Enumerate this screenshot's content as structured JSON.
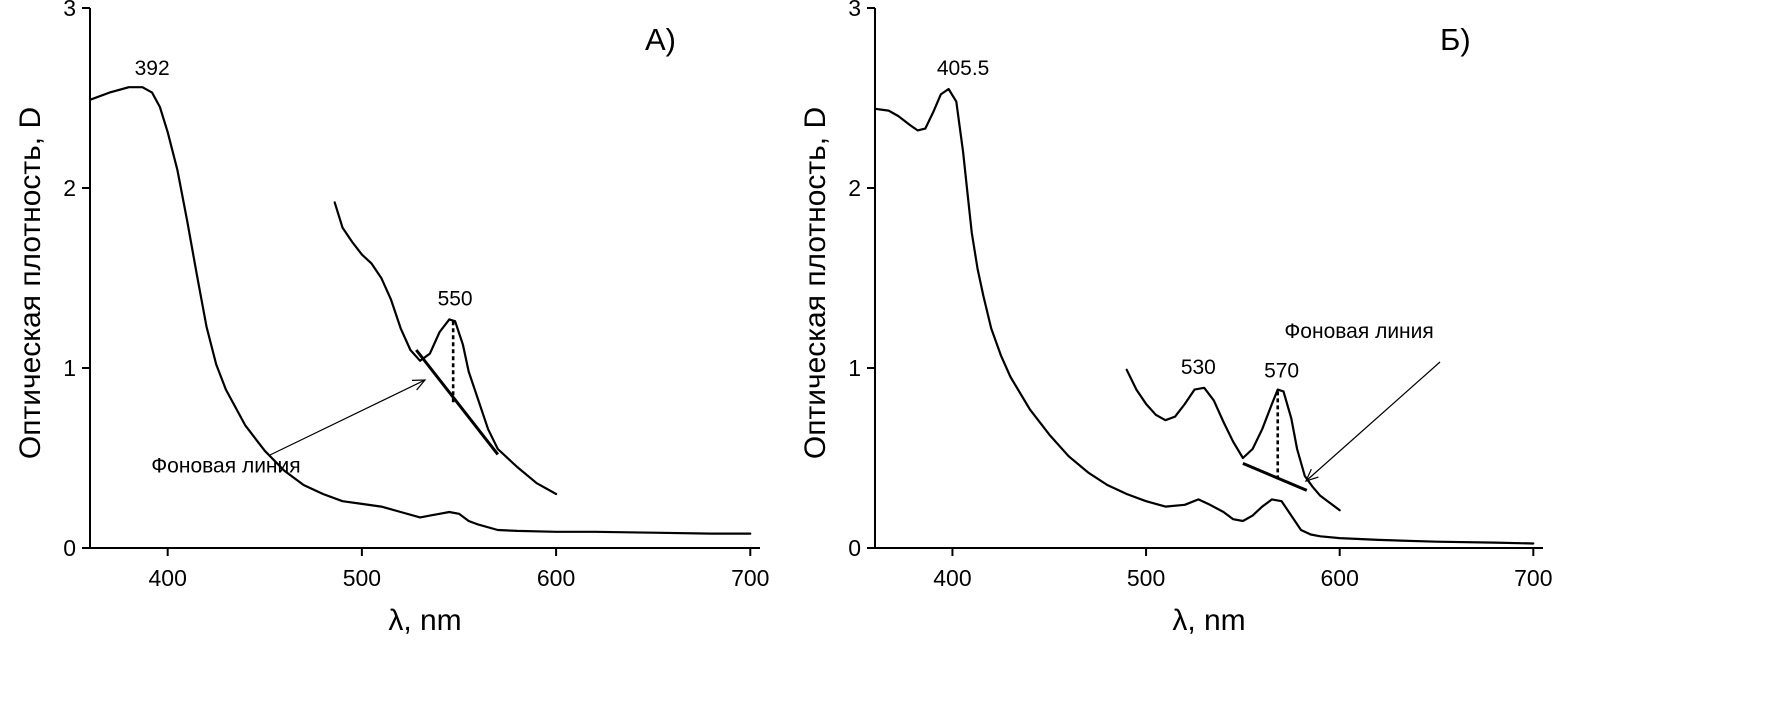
{
  "chart_data": [
    {
      "type": "line",
      "panel_label": "А)",
      "xlabel": "λ, nm",
      "ylabel": "Оптическая плотность, D",
      "xlim": [
        360,
        705
      ],
      "ylim": [
        0,
        3
      ],
      "x_ticks": [
        400,
        500,
        600,
        700
      ],
      "y_ticks": [
        0,
        1,
        2,
        3
      ],
      "series": [
        {
          "x": [
            360,
            370,
            380,
            387,
            392,
            396,
            400,
            405,
            410,
            415,
            420,
            425,
            430,
            440,
            450,
            460,
            470,
            480,
            490,
            500,
            510,
            520,
            530,
            535,
            540,
            545,
            550,
            555,
            560,
            570,
            580,
            600,
            620,
            650,
            680,
            700
          ],
          "y": [
            2.49,
            2.53,
            2.56,
            2.56,
            2.53,
            2.45,
            2.31,
            2.1,
            1.82,
            1.52,
            1.23,
            1.02,
            0.88,
            0.68,
            0.54,
            0.43,
            0.35,
            0.3,
            0.26,
            0.245,
            0.23,
            0.2,
            0.17,
            0.18,
            0.19,
            0.2,
            0.19,
            0.15,
            0.13,
            0.1,
            0.095,
            0.09,
            0.09,
            0.085,
            0.08,
            0.08
          ]
        },
        {
          "x": [
            486,
            490,
            495,
            500,
            505,
            510,
            515,
            520,
            525,
            530,
            535,
            540,
            545,
            548,
            552,
            555,
            560,
            565,
            570,
            580,
            590,
            600
          ],
          "y": [
            1.92,
            1.78,
            1.7,
            1.63,
            1.58,
            1.5,
            1.38,
            1.22,
            1.1,
            1.04,
            1.08,
            1.2,
            1.27,
            1.26,
            1.13,
            0.98,
            0.82,
            0.66,
            0.55,
            0.45,
            0.36,
            0.3
          ]
        }
      ],
      "annotations": [
        {
          "text": "392",
          "x": 392,
          "y": 2.56
        },
        {
          "text": "550",
          "x": 548,
          "y": 1.27
        },
        {
          "text": "Фоновая линия",
          "x": 430,
          "y": 0.42
        }
      ],
      "baseline": {
        "x": [
          528,
          570
        ],
        "y": [
          1.1,
          0.52
        ]
      },
      "peak_drop": {
        "x": 547,
        "y_top": 1.26,
        "y_bottom": 0.8
      }
    },
    {
      "type": "line",
      "panel_label": "Б)",
      "xlabel": "λ, nm",
      "ylabel": "Оптическая плотность, D",
      "xlim": [
        360,
        705
      ],
      "ylim": [
        0,
        3
      ],
      "x_ticks": [
        400,
        500,
        600,
        700
      ],
      "y_ticks": [
        0,
        1,
        2,
        3
      ],
      "series": [
        {
          "x": [
            360,
            367,
            372,
            378,
            382,
            386,
            390,
            394,
            398,
            402,
            405.5,
            408,
            410,
            413,
            416,
            420,
            425,
            430,
            440,
            450,
            460,
            470,
            480,
            490,
            500,
            510,
            520,
            527,
            533,
            540,
            545,
            550,
            555,
            560,
            565,
            570,
            575,
            580,
            585,
            590,
            600,
            620,
            650,
            680,
            700
          ],
          "y": [
            2.44,
            2.43,
            2.4,
            2.35,
            2.32,
            2.33,
            2.42,
            2.52,
            2.55,
            2.48,
            2.2,
            1.95,
            1.75,
            1.55,
            1.4,
            1.22,
            1.07,
            0.95,
            0.77,
            0.63,
            0.51,
            0.42,
            0.35,
            0.3,
            0.26,
            0.23,
            0.24,
            0.27,
            0.24,
            0.2,
            0.16,
            0.15,
            0.18,
            0.23,
            0.27,
            0.26,
            0.18,
            0.1,
            0.075,
            0.065,
            0.055,
            0.045,
            0.035,
            0.03,
            0.025
          ]
        },
        {
          "x": [
            490,
            495,
            500,
            505,
            510,
            515,
            520,
            525,
            530,
            535,
            540,
            545,
            550,
            555,
            560,
            565,
            568,
            571,
            575,
            578,
            582,
            586,
            590,
            595,
            600
          ],
          "y": [
            0.99,
            0.88,
            0.8,
            0.74,
            0.71,
            0.73,
            0.8,
            0.88,
            0.89,
            0.82,
            0.7,
            0.59,
            0.5,
            0.55,
            0.66,
            0.8,
            0.88,
            0.87,
            0.72,
            0.55,
            0.4,
            0.34,
            0.29,
            0.25,
            0.21
          ]
        }
      ],
      "annotations": [
        {
          "text": "405.5",
          "x": 405.5,
          "y": 2.55
        },
        {
          "text": "530",
          "x": 527,
          "y": 0.89
        },
        {
          "text": "570",
          "x": 570,
          "y": 0.88
        },
        {
          "text": "Фоновая линия",
          "x": 610,
          "y": 1.1
        }
      ],
      "baseline": {
        "x": [
          550,
          583
        ],
        "y": [
          0.47,
          0.32
        ]
      },
      "peak_drop": {
        "x": 568,
        "y_top": 0.87,
        "y_bottom": 0.38
      }
    }
  ]
}
